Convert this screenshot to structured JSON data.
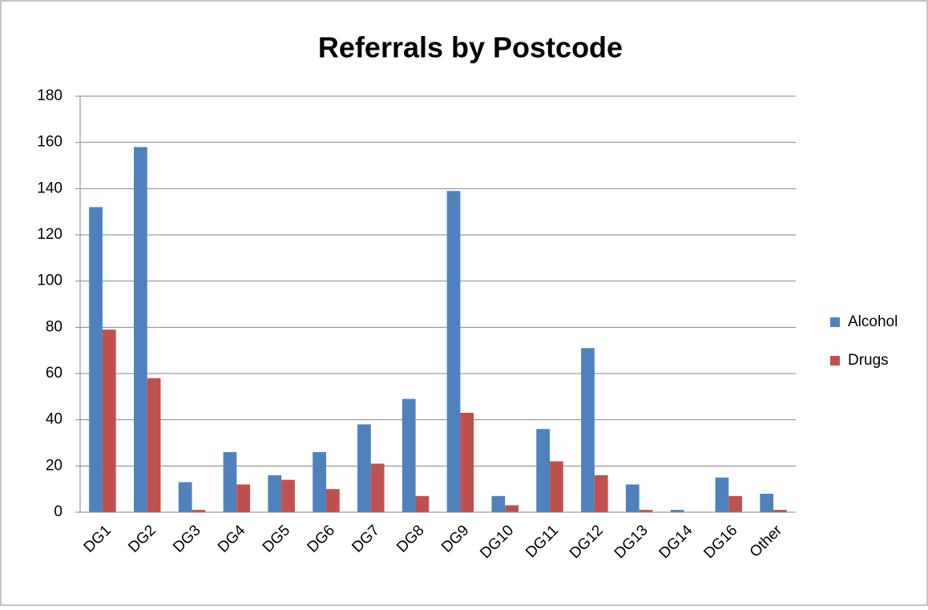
{
  "chart_data": {
    "type": "bar",
    "title": "Referrals by Postcode",
    "categories": [
      "DG1",
      "DG2",
      "DG3",
      "DG4",
      "DG5",
      "DG6",
      "DG7",
      "DG8",
      "DG9",
      "DG10",
      "DG11",
      "DG12",
      "DG13",
      "DG14",
      "DG16",
      "Other"
    ],
    "series": [
      {
        "name": "Alcohol",
        "color": "#4f81bd",
        "values": [
          132,
          158,
          13,
          26,
          16,
          26,
          38,
          49,
          139,
          7,
          36,
          71,
          12,
          1,
          15,
          8
        ]
      },
      {
        "name": "Drugs",
        "color": "#c0504d",
        "values": [
          79,
          58,
          1,
          12,
          14,
          10,
          21,
          7,
          43,
          3,
          22,
          16,
          1,
          0,
          7,
          1
        ]
      }
    ],
    "ylim": [
      0,
      180
    ],
    "yticks": [
      0,
      20,
      40,
      60,
      80,
      100,
      120,
      140,
      160,
      180
    ],
    "grid": true,
    "legend": "right"
  }
}
